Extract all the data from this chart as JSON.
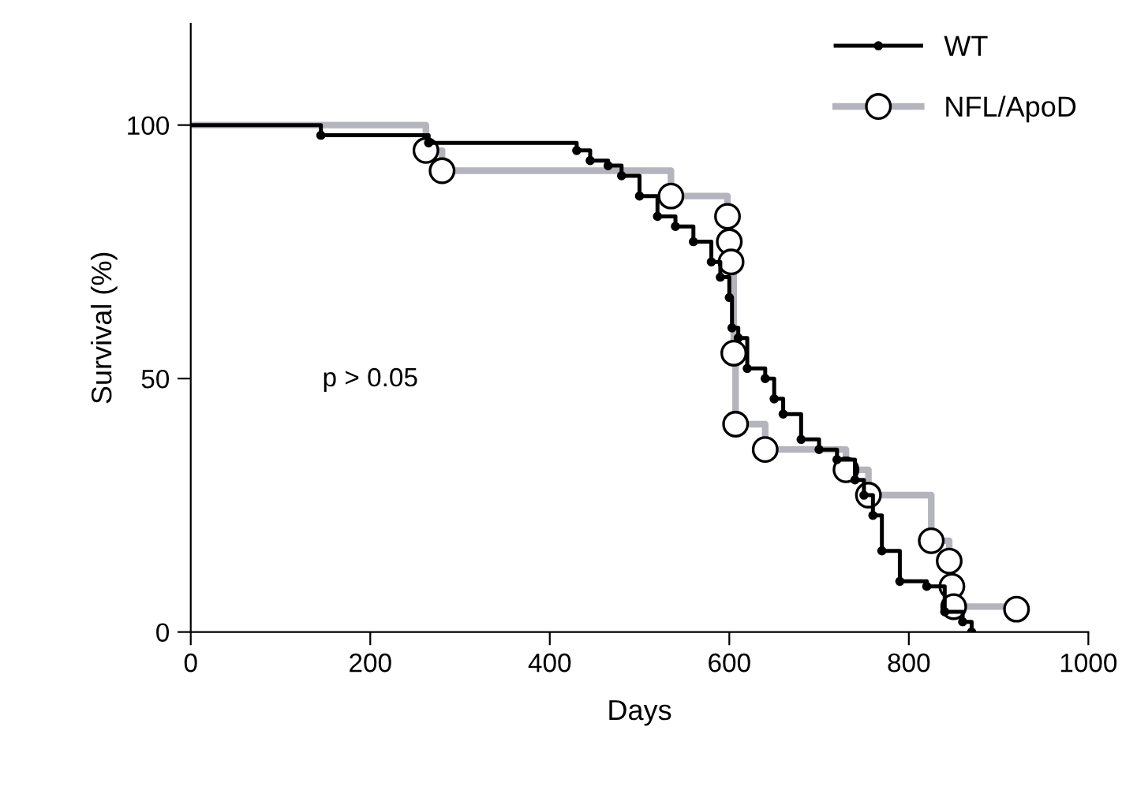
{
  "chart_data": {
    "type": "step",
    "xlabel": "Days",
    "ylabel": "Survival (%)",
    "xlim": [
      0,
      1000
    ],
    "ylim": [
      0,
      120
    ],
    "xticks": [
      0,
      200,
      400,
      600,
      800,
      1000
    ],
    "yticks": [
      0,
      50,
      100
    ],
    "grid": false,
    "legend": "top right",
    "annotations": [
      "p > 0.05"
    ],
    "series": [
      {
        "name": "WT",
        "color": "#000000",
        "marker": "circle",
        "x": [
          0,
          145,
          265,
          430,
          445,
          465,
          480,
          500,
          520,
          540,
          560,
          580,
          590,
          600,
          603,
          610,
          620,
          640,
          650,
          660,
          680,
          700,
          720,
          740,
          750,
          760,
          770,
          790,
          820,
          840,
          860,
          870
        ],
        "values": [
          100,
          98,
          96.5,
          95,
          93,
          92,
          90,
          86,
          82,
          80,
          77,
          73,
          70,
          66,
          60,
          58,
          52,
          50,
          46,
          43,
          38,
          36,
          34,
          30,
          27,
          23,
          16,
          10,
          9,
          4,
          2,
          0
        ]
      },
      {
        "name": "NFL/ApoD",
        "color": "#b4b4bc",
        "marker": "circle",
        "x": [
          0,
          262,
          280,
          535,
          598,
          600,
          602,
          605,
          607,
          640,
          730,
          755,
          825,
          845,
          848,
          850,
          920
        ],
        "values": [
          100,
          95,
          91,
          86,
          82,
          77,
          73,
          55,
          41,
          36,
          32,
          27,
          18,
          14,
          9,
          5,
          4.5
        ]
      }
    ]
  }
}
